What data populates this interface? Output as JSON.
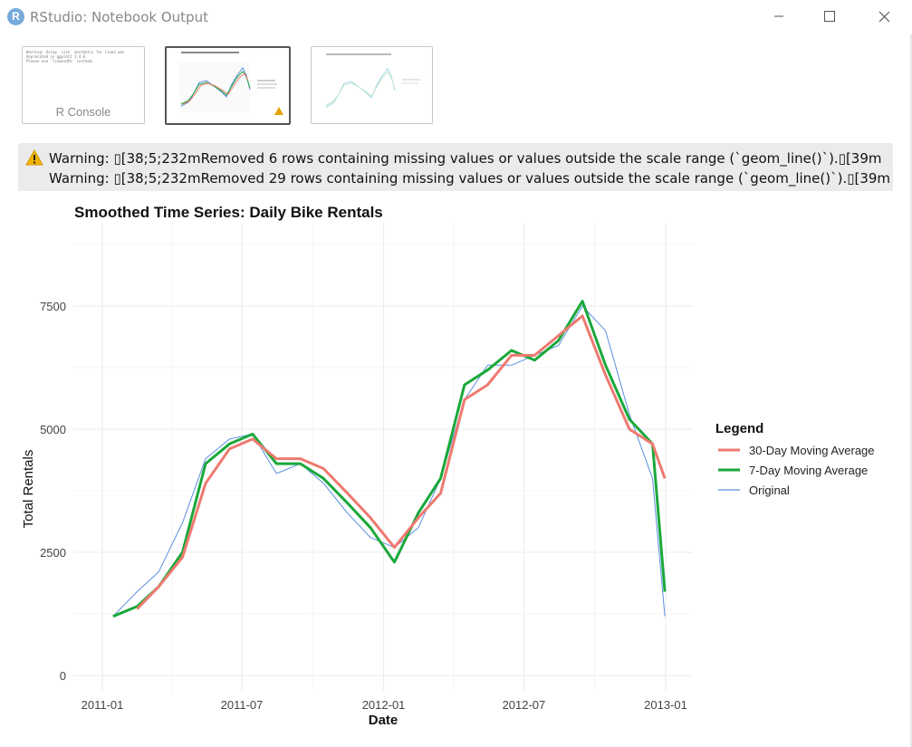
{
  "window": {
    "title": "RStudio: Notebook Output",
    "icon_letter": "R",
    "controls": [
      "minimize-icon",
      "maximize-icon",
      "close-icon"
    ]
  },
  "thumbnails": [
    {
      "label": "R Console",
      "type": "console",
      "selected": false,
      "lines": [
        "Warning: Using `size` aesthetic for lines was",
        "deprecated in ggplot2 3.4.0.",
        "Please use `linewidth` instead."
      ]
    },
    {
      "label": "",
      "type": "plot-thumb",
      "selected": true,
      "has_warning": true
    },
    {
      "label": "",
      "type": "plot-thumb",
      "selected": false
    }
  ],
  "warnings": {
    "icon": "warning-triangle-icon",
    "lines": [
      "Warning: ▯[38;5;232mRemoved 6 rows containing missing values or values outside the scale range (`geom_line()`).▯[39m",
      "Warning: ▯[38;5;232mRemoved 29 rows containing missing values or values outside the scale range (`geom_line()`).▯[39m"
    ]
  },
  "colors": {
    "original": "#5b8fe0",
    "ma7": "#1aa83a",
    "ma30": "#ee7a70",
    "grid": "#ebebeb",
    "warning_bg": "#ebebeb"
  },
  "chart_data": {
    "type": "line",
    "title": "Smoothed Time Series: Daily Bike Rentals",
    "xlabel": "Date",
    "ylabel": "Total Rentals",
    "x_ticks": [
      "2011-01",
      "2011-07",
      "2012-01",
      "2012-07",
      "2013-01"
    ],
    "y_ticks": [
      0,
      2500,
      5000,
      7500
    ],
    "xlim": [
      "2011-01-01",
      "2013-01-01"
    ],
    "ylim": [
      0,
      8700
    ],
    "grid": true,
    "legend": {
      "title": "Legend",
      "position": "right",
      "entries": [
        "30-Day Moving Average",
        "7-Day Moving Average",
        "Original"
      ]
    },
    "x": [
      "2011-01",
      "2011-02",
      "2011-03",
      "2011-04",
      "2011-05",
      "2011-06",
      "2011-07",
      "2011-08",
      "2011-09",
      "2011-10",
      "2011-11",
      "2011-12",
      "2012-01",
      "2012-02",
      "2012-03",
      "2012-04",
      "2012-05",
      "2012-06",
      "2012-07",
      "2012-08",
      "2012-09",
      "2012-10",
      "2012-11",
      "2012-12",
      "2012-12-31"
    ],
    "series": [
      {
        "name": "Original",
        "values": [
          1200,
          1700,
          2100,
          3100,
          4400,
          4800,
          4900,
          4100,
          4300,
          3900,
          3300,
          2800,
          2600,
          3000,
          4000,
          5600,
          6300,
          6300,
          6500,
          6700,
          7500,
          7000,
          5300,
          4000,
          1200
        ]
      },
      {
        "name": "7-Day Moving Average",
        "values": [
          1200,
          1400,
          1800,
          2500,
          4300,
          4700,
          4900,
          4300,
          4300,
          4000,
          3500,
          3000,
          2300,
          3300,
          4000,
          5900,
          6200,
          6600,
          6400,
          6800,
          7600,
          6300,
          5200,
          4700,
          1700
        ]
      },
      {
        "name": "30-Day Moving Average",
        "values": [
          null,
          1350,
          1800,
          2400,
          3900,
          4600,
          4800,
          4400,
          4400,
          4200,
          3700,
          3200,
          2600,
          3200,
          3700,
          5600,
          5900,
          6500,
          6500,
          6900,
          7300,
          6100,
          5000,
          4700,
          4000
        ]
      }
    ]
  }
}
